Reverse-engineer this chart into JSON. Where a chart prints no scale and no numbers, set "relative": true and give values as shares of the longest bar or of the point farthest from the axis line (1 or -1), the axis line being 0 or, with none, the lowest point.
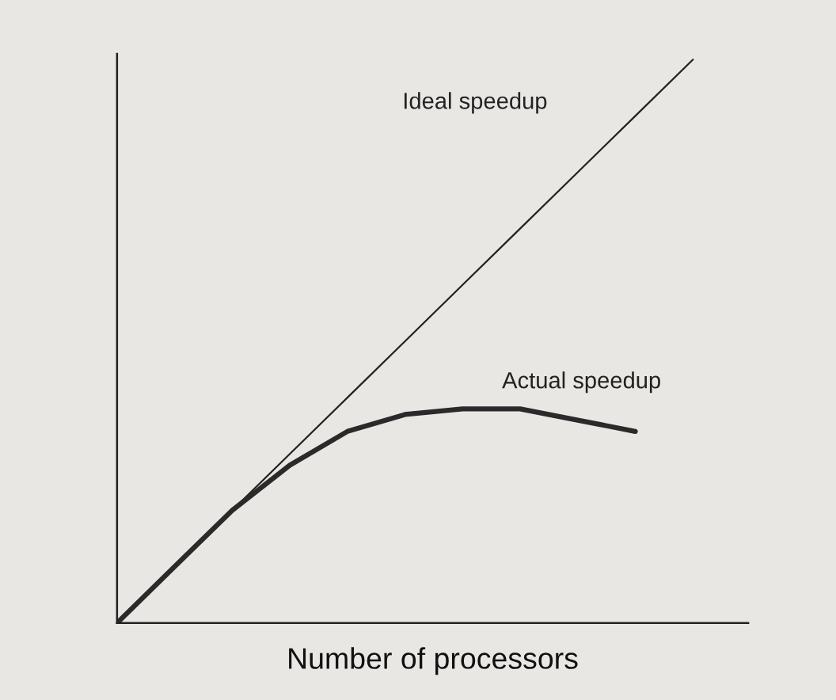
{
  "chart_data": {
    "type": "line",
    "relative": true,
    "xlabel": "Number of processors",
    "categories": [
      null,
      null,
      null,
      null,
      null,
      null,
      null,
      null,
      null,
      null,
      null
    ],
    "series": [
      {
        "name": "Ideal speedup",
        "color": "#222222",
        "values": [
          0,
          0.1,
          0.2,
          0.3,
          0.4,
          0.5,
          0.6,
          0.7,
          0.8,
          0.9,
          1
        ]
      },
      {
        "name": "Actual speedup",
        "color": "#2a2a2a",
        "values": [
          0,
          0.1,
          0.2,
          0.28,
          0.34,
          0.37,
          0.38,
          0.38,
          0.36,
          0.34,
          null
        ]
      }
    ],
    "grid": false,
    "legend": false,
    "marker": "none",
    "line_style": "solid",
    "tick_labels": false
  }
}
